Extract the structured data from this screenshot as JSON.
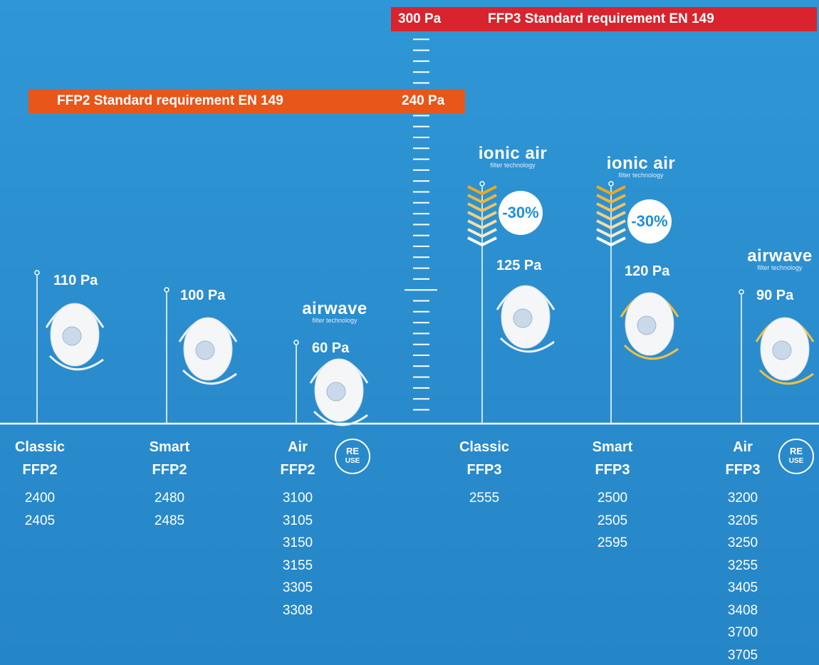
{
  "banners": {
    "ffp3": {
      "value": "300 Pa",
      "label": "FFP3 Standard requirement EN 149"
    },
    "ffp2": {
      "label": "FFP2 Standard requirement EN 149",
      "value": "240 Pa"
    }
  },
  "products": [
    {
      "pressure": "110 Pa",
      "name": [
        "Classic",
        "FFP2"
      ],
      "models": [
        "2400",
        "2405"
      ]
    },
    {
      "pressure": "100 Pa",
      "name": [
        "Smart",
        "FFP2"
      ],
      "models": [
        "2480",
        "2485"
      ]
    },
    {
      "pressure": "60 Pa",
      "name": [
        "Air",
        "FFP2"
      ],
      "models": [
        "3100",
        "3105",
        "3150",
        "3155",
        "3305",
        "3308"
      ],
      "logo": {
        "brand": "airwave",
        "tagline": "filter technology"
      },
      "reuse": [
        "RE",
        "USE"
      ]
    },
    {
      "pressure": "125 Pa",
      "name": [
        "Classic",
        "FFP3"
      ],
      "models": [
        "2555"
      ],
      "logo": {
        "brand": "ionic air",
        "tagline": "filter technology"
      },
      "reduction": "-30%"
    },
    {
      "pressure": "120 Pa",
      "name": [
        "Smart",
        "FFP3"
      ],
      "models": [
        "2500",
        "2505",
        "2595"
      ],
      "logo": {
        "brand": "ionic air",
        "tagline": "filter technology"
      },
      "reduction": "-30%"
    },
    {
      "pressure": "90 Pa",
      "name": [
        "Air",
        "FFP3"
      ],
      "models": [
        "3200",
        "3205",
        "3250",
        "3255",
        "3405",
        "3408",
        "3700",
        "3705"
      ],
      "logo": {
        "brand": "airwave",
        "tagline": "filter technology"
      },
      "reuse": [
        "RE",
        "USE"
      ]
    }
  ]
}
